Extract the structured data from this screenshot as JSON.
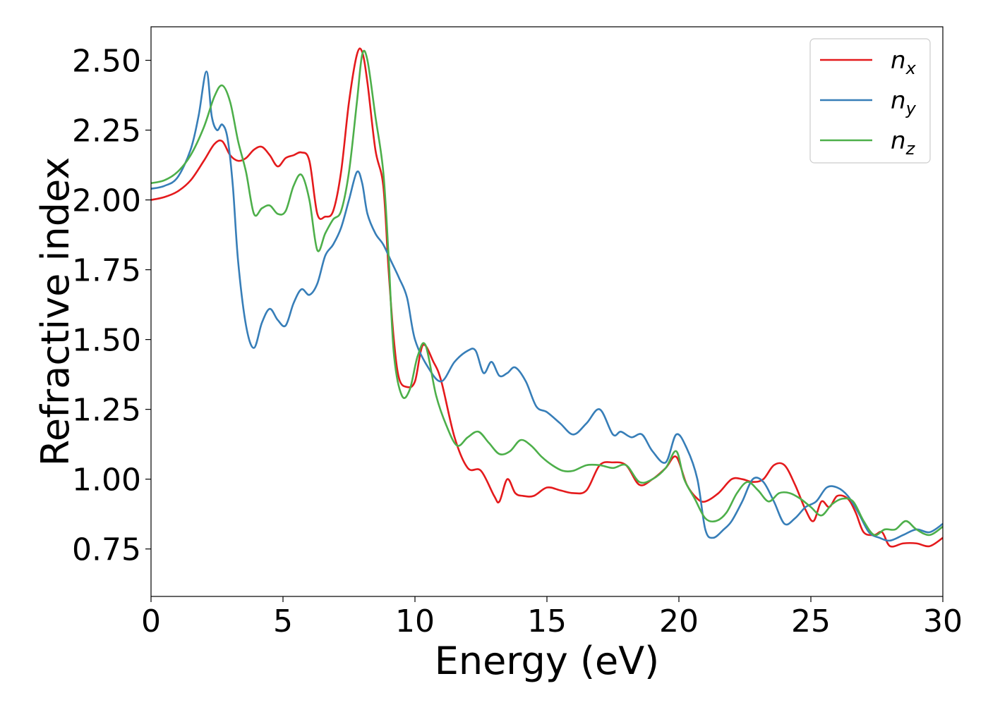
{
  "chart_data": {
    "type": "line",
    "title": "",
    "xlabel": "Energy (eV)",
    "ylabel": "Refractive index",
    "xlim": [
      0,
      30
    ],
    "ylim": [
      0.58,
      2.62
    ],
    "xticks": [
      0,
      5,
      10,
      15,
      20,
      25,
      30
    ],
    "yticks": [
      0.75,
      1.0,
      1.25,
      1.5,
      1.75,
      2.0,
      2.25,
      2.5
    ],
    "xtick_labels": [
      "0",
      "5",
      "10",
      "15",
      "20",
      "25",
      "30"
    ],
    "ytick_labels": [
      "0.75",
      "1.00",
      "1.25",
      "1.50",
      "1.75",
      "2.00",
      "2.25",
      "2.50"
    ],
    "grid": false,
    "legend_position": "top-right",
    "series": [
      {
        "name": "n",
        "subscript": "x",
        "color": "#e41a1c",
        "x": [
          0,
          0.5,
          1.0,
          1.5,
          2.0,
          2.4,
          2.7,
          3.0,
          3.3,
          3.6,
          3.9,
          4.2,
          4.5,
          4.8,
          5.1,
          5.4,
          5.7,
          6.0,
          6.3,
          6.6,
          6.9,
          7.2,
          7.5,
          7.8,
          8.0,
          8.2,
          8.5,
          8.8,
          9.0,
          9.2,
          9.4,
          9.7,
          10.0,
          10.3,
          10.7,
          11.0,
          11.5,
          12.0,
          12.5,
          13.0,
          13.2,
          13.5,
          13.8,
          14.1,
          14.5,
          15.0,
          15.5,
          16.0,
          16.5,
          17.0,
          17.5,
          18.0,
          18.5,
          19.0,
          19.5,
          19.9,
          20.3,
          20.7,
          21.0,
          21.5,
          22.0,
          22.4,
          22.8,
          23.2,
          23.6,
          24.0,
          24.4,
          24.8,
          25.1,
          25.4,
          25.7,
          26.0,
          26.4,
          26.7,
          27.0,
          27.4,
          27.7,
          28.0,
          28.5,
          29.0,
          29.5,
          30.0
        ],
        "values": [
          2.0,
          2.01,
          2.03,
          2.07,
          2.14,
          2.2,
          2.21,
          2.16,
          2.14,
          2.15,
          2.18,
          2.19,
          2.16,
          2.12,
          2.15,
          2.16,
          2.17,
          2.14,
          1.95,
          1.94,
          1.96,
          2.1,
          2.35,
          2.52,
          2.53,
          2.42,
          2.18,
          2.05,
          1.75,
          1.5,
          1.36,
          1.33,
          1.35,
          1.48,
          1.42,
          1.35,
          1.15,
          1.04,
          1.03,
          0.94,
          0.92,
          1.0,
          0.95,
          0.94,
          0.94,
          0.97,
          0.96,
          0.95,
          0.96,
          1.05,
          1.06,
          1.05,
          0.98,
          1.0,
          1.04,
          1.08,
          0.98,
          0.93,
          0.92,
          0.95,
          1.0,
          1.0,
          0.99,
          1.0,
          1.05,
          1.05,
          0.98,
          0.89,
          0.85,
          0.92,
          0.9,
          0.94,
          0.93,
          0.88,
          0.81,
          0.8,
          0.81,
          0.76,
          0.77,
          0.77,
          0.76,
          0.79
        ]
      },
      {
        "name": "n",
        "subscript": "y",
        "color": "#377eb8",
        "x": [
          0,
          0.5,
          1.0,
          1.5,
          1.8,
          2.1,
          2.3,
          2.5,
          2.7,
          2.9,
          3.1,
          3.3,
          3.6,
          3.9,
          4.2,
          4.5,
          4.8,
          5.1,
          5.4,
          5.7,
          6.0,
          6.3,
          6.6,
          6.9,
          7.2,
          7.5,
          7.8,
          8.0,
          8.2,
          8.5,
          8.8,
          9.1,
          9.4,
          9.7,
          10.0,
          10.5,
          11.0,
          11.5,
          12.0,
          12.3,
          12.6,
          12.9,
          13.2,
          13.5,
          13.8,
          14.2,
          14.6,
          15.0,
          15.5,
          16.0,
          16.5,
          17.0,
          17.5,
          17.8,
          18.2,
          18.6,
          19.0,
          19.5,
          19.9,
          20.3,
          20.7,
          21.0,
          21.3,
          21.7,
          22.0,
          22.4,
          22.8,
          23.2,
          23.6,
          24.0,
          24.4,
          24.8,
          25.2,
          25.6,
          26.0,
          26.4,
          26.8,
          27.2,
          27.6,
          28.0,
          28.5,
          29.0,
          29.5,
          30.0
        ],
        "values": [
          2.04,
          2.05,
          2.08,
          2.18,
          2.3,
          2.46,
          2.3,
          2.25,
          2.27,
          2.22,
          2.05,
          1.78,
          1.55,
          1.47,
          1.56,
          1.61,
          1.57,
          1.55,
          1.63,
          1.68,
          1.66,
          1.7,
          1.8,
          1.84,
          1.9,
          2.0,
          2.1,
          2.06,
          1.95,
          1.88,
          1.84,
          1.78,
          1.72,
          1.65,
          1.5,
          1.4,
          1.35,
          1.42,
          1.46,
          1.46,
          1.38,
          1.42,
          1.37,
          1.38,
          1.4,
          1.35,
          1.26,
          1.24,
          1.2,
          1.16,
          1.2,
          1.25,
          1.16,
          1.17,
          1.15,
          1.16,
          1.1,
          1.06,
          1.16,
          1.11,
          1.0,
          0.82,
          0.79,
          0.82,
          0.85,
          0.92,
          1.0,
          0.99,
          0.92,
          0.84,
          0.86,
          0.9,
          0.92,
          0.97,
          0.97,
          0.94,
          0.88,
          0.81,
          0.79,
          0.78,
          0.8,
          0.82,
          0.81,
          0.84
        ]
      },
      {
        "name": "n",
        "subscript": "z",
        "color": "#4daf4a",
        "x": [
          0,
          0.5,
          1.0,
          1.5,
          2.0,
          2.4,
          2.7,
          3.0,
          3.3,
          3.6,
          3.9,
          4.2,
          4.5,
          4.8,
          5.1,
          5.4,
          5.7,
          6.0,
          6.3,
          6.6,
          6.9,
          7.2,
          7.5,
          7.8,
          8.0,
          8.2,
          8.5,
          8.8,
          9.0,
          9.2,
          9.5,
          9.8,
          10.1,
          10.4,
          10.8,
          11.2,
          11.6,
          12.0,
          12.4,
          12.8,
          13.2,
          13.6,
          14.0,
          14.4,
          14.8,
          15.2,
          15.6,
          16.0,
          16.5,
          17.0,
          17.5,
          18.0,
          18.5,
          19.0,
          19.5,
          19.9,
          20.2,
          20.6,
          21.0,
          21.4,
          21.8,
          22.2,
          22.6,
          23.0,
          23.4,
          23.8,
          24.2,
          24.6,
          25.0,
          25.4,
          25.8,
          26.2,
          26.6,
          27.0,
          27.4,
          27.8,
          28.2,
          28.6,
          29.0,
          29.5,
          30.0
        ],
        "values": [
          2.06,
          2.07,
          2.1,
          2.16,
          2.26,
          2.37,
          2.41,
          2.35,
          2.21,
          2.1,
          1.95,
          1.97,
          1.98,
          1.95,
          1.96,
          2.05,
          2.09,
          2.0,
          1.82,
          1.88,
          1.93,
          1.96,
          2.1,
          2.35,
          2.52,
          2.5,
          2.3,
          2.1,
          1.8,
          1.45,
          1.3,
          1.32,
          1.44,
          1.48,
          1.3,
          1.19,
          1.12,
          1.15,
          1.17,
          1.13,
          1.09,
          1.1,
          1.14,
          1.12,
          1.08,
          1.05,
          1.03,
          1.03,
          1.05,
          1.05,
          1.04,
          1.05,
          0.99,
          1.0,
          1.04,
          1.1,
          1.0,
          0.93,
          0.86,
          0.85,
          0.88,
          0.95,
          0.99,
          0.96,
          0.92,
          0.95,
          0.95,
          0.93,
          0.9,
          0.87,
          0.91,
          0.93,
          0.92,
          0.85,
          0.8,
          0.82,
          0.82,
          0.85,
          0.82,
          0.8,
          0.83
        ]
      }
    ]
  }
}
